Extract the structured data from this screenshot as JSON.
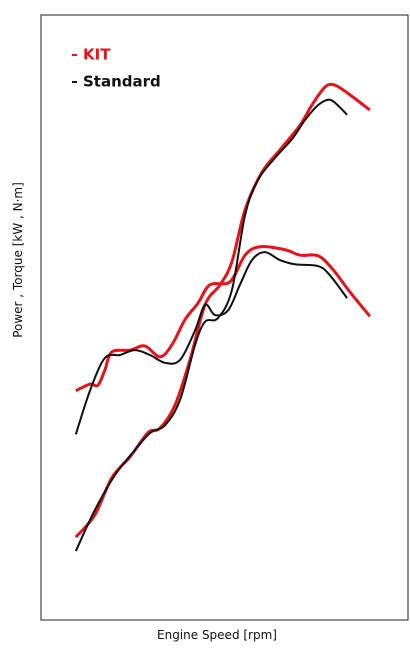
{
  "chart_data": {
    "type": "line",
    "xlabel": "Engine Speed  [rpm]",
    "ylabel": "Power , Torque  [kW , N·m]",
    "xlim": [
      0,
      100
    ],
    "ylim": [
      0,
      100
    ],
    "series": [
      {
        "name": "KIT",
        "color": "#e5141b",
        "curves": [
          {
            "x": [
              9.5,
              13.4,
              15.5,
              17.4,
              19.3,
              24.3,
              28.3,
              32.4,
              35.7,
              39.2,
              42.8,
              46.0,
              51.5,
              55.6,
              59.7,
              66.5,
              70.6,
              75.5,
              79.6,
              84.2,
              89.6
            ],
            "values": [
              37.9,
              39.0,
              38.8,
              41.3,
              44.3,
              44.6,
              45.3,
              43.5,
              45.5,
              49.6,
              52.4,
              55.4,
              55.9,
              60.3,
              61.7,
              61.2,
              60.3,
              60.2,
              57.9,
              54.2,
              50.2
            ]
          },
          {
            "x": [
              9.5,
              14.7,
              19.3,
              24.3,
              29.2,
              32.4,
              36.5,
              40.6,
              44.7,
              48.8,
              52.0,
              55.6,
              60.2,
              65.1,
              70.6,
              73.8,
              77.4,
              80.1,
              84.2,
              89.6
            ],
            "values": [
              13.7,
              17.4,
              23.5,
              27.0,
              31.0,
              31.7,
              35.5,
              43.0,
              52.1,
              55.4,
              59.2,
              67.8,
              74.0,
              77.7,
              81.8,
              85.1,
              88.1,
              88.4,
              86.8,
              84.3
            ]
          }
        ]
      },
      {
        "name": "Standard",
        "color": "#111111",
        "curves": [
          {
            "x": [
              9.5,
              13.4,
              17.4,
              21.5,
              25.6,
              29.7,
              33.8,
              37.9,
              42.0,
              44.7,
              47.4,
              51.0,
              54.2,
              57.5,
              61.0,
              65.1,
              69.2,
              75.5,
              78.7,
              83.4
            ],
            "values": [
              30.7,
              38.0,
              43.3,
              43.8,
              44.6,
              43.8,
              42.5,
              43.0,
              47.9,
              52.1,
              50.4,
              51.2,
              55.4,
              59.5,
              60.8,
              59.5,
              58.8,
              58.5,
              57.0,
              53.2
            ]
          },
          {
            "x": [
              9.5,
              14.7,
              20.2,
              25.6,
              29.7,
              33.8,
              37.9,
              42.0,
              44.7,
              48.2,
              52.0,
              55.6,
              59.1,
              63.8,
              68.4,
              71.9,
              75.5,
              78.7,
              81.5,
              83.4
            ],
            "values": [
              11.4,
              18.2,
              24.0,
              28.1,
              30.9,
              32.2,
              36.4,
              45.5,
              49.3,
              49.9,
              54.5,
              66.9,
              72.7,
              76.4,
              79.5,
              82.6,
              85.1,
              86.0,
              84.7,
              83.5
            ]
          }
        ]
      }
    ]
  }
}
